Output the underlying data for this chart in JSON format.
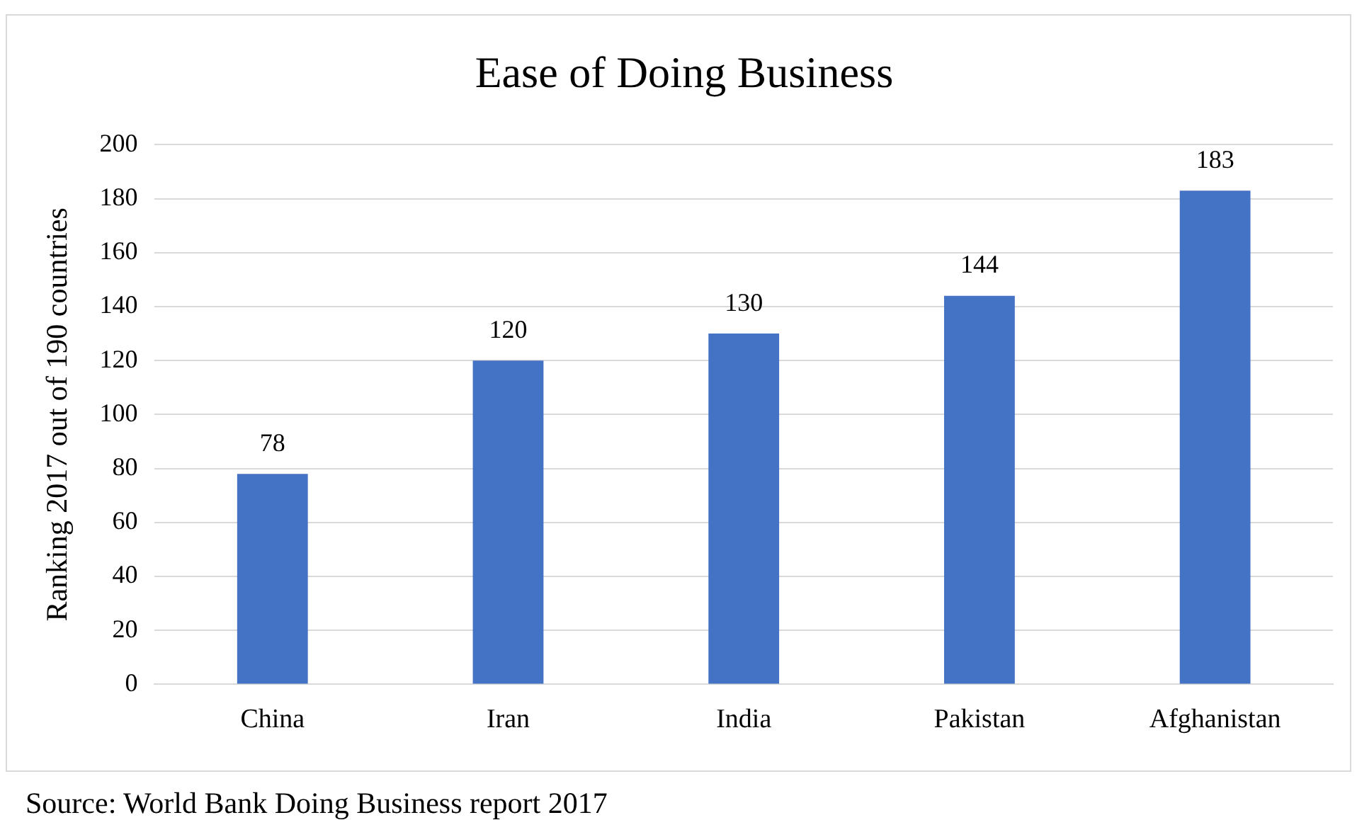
{
  "chart_data": {
    "type": "bar",
    "title": "Ease of Doing Business",
    "ylabel": "Ranking 2017 out of 190 countries",
    "categories": [
      "China",
      "Iran",
      "India",
      "Pakistan",
      "Afghanistan"
    ],
    "values": [
      78,
      120,
      130,
      144,
      183
    ],
    "color": "#4472c4",
    "ylim": [
      0,
      200
    ],
    "yticks": [
      0,
      20,
      40,
      60,
      80,
      100,
      120,
      140,
      160,
      180,
      200
    ],
    "grid": "y",
    "legend": false,
    "data_labels": true,
    "annotations": [
      "Source: World Bank Doing Business report 2017"
    ]
  }
}
